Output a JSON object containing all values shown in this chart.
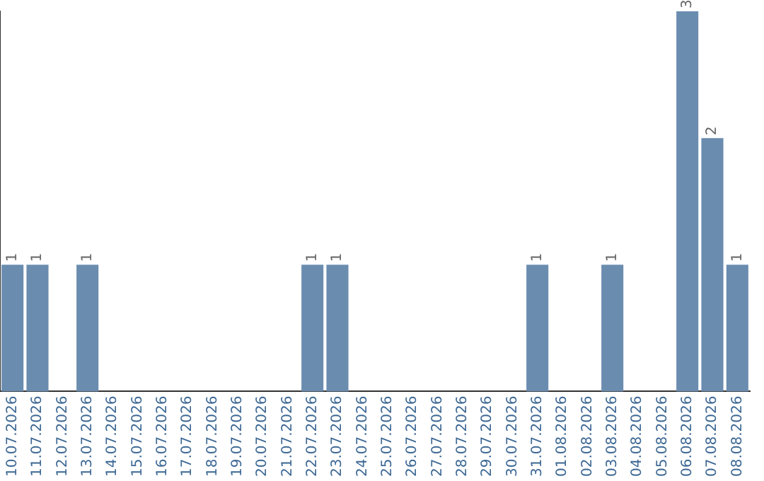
{
  "chart_data": {
    "type": "bar",
    "categories": [
      "10.07.2026",
      "11.07.2026",
      "12.07.2026",
      "13.07.2026",
      "14.07.2026",
      "15.07.2026",
      "16.07.2026",
      "17.07.2026",
      "18.07.2026",
      "19.07.2026",
      "20.07.2026",
      "21.07.2026",
      "22.07.2026",
      "23.07.2026",
      "24.07.2026",
      "25.07.2026",
      "26.07.2026",
      "27.07.2026",
      "28.07.2026",
      "29.07.2026",
      "30.07.2026",
      "31.07.2026",
      "01.08.2026",
      "02.08.2026",
      "03.08.2026",
      "04.08.2026",
      "05.08.2026",
      "06.08.2026",
      "07.08.2026",
      "08.08.2026"
    ],
    "values": [
      1,
      1,
      0,
      1,
      0,
      0,
      0,
      0,
      0,
      0,
      0,
      0,
      1,
      1,
      0,
      0,
      0,
      0,
      0,
      0,
      0,
      1,
      0,
      0,
      1,
      0,
      0,
      3,
      2,
      1
    ],
    "value_labels": [
      "1",
      "1",
      null,
      "1",
      null,
      null,
      null,
      null,
      null,
      null,
      null,
      null,
      "1",
      "1",
      null,
      null,
      null,
      null,
      null,
      null,
      null,
      "1",
      null,
      null,
      "1",
      null,
      null,
      "3",
      "2",
      "1"
    ],
    "color": "#6a8caf",
    "grid": false,
    "legend": false,
    "tick_labels": "x"
  }
}
